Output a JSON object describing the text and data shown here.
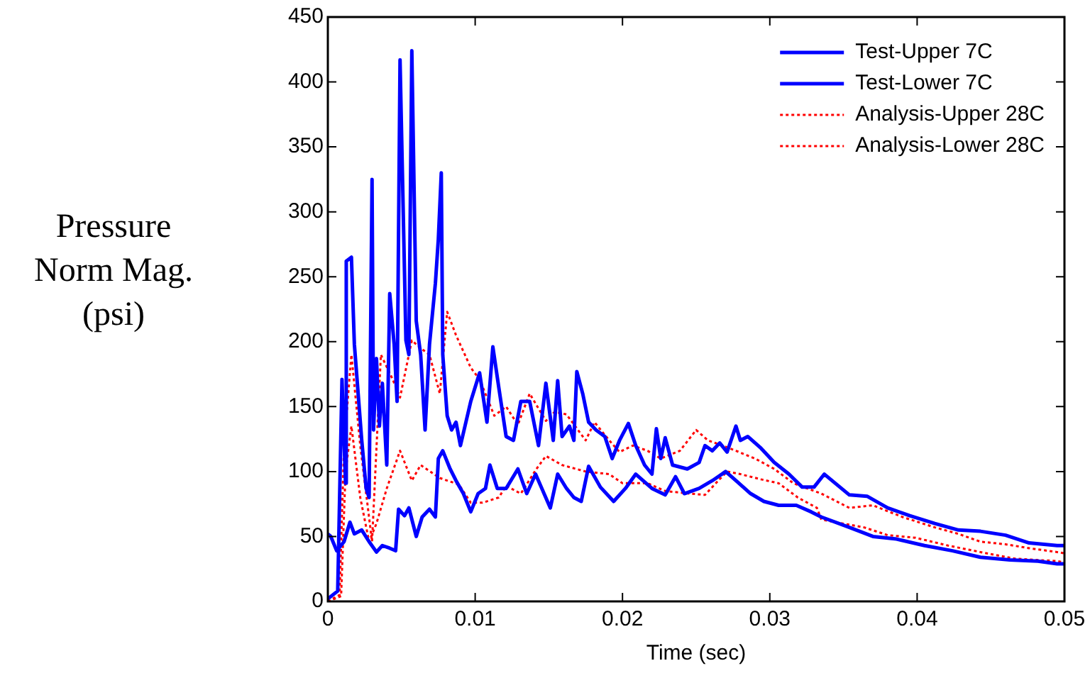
{
  "chart_data": {
    "type": "line",
    "xlabel": "Time (sec)",
    "ylabel": "Pressure Norm Mag. (psi)",
    "xlim": [
      0,
      0.05
    ],
    "xticks": [
      0,
      0.01,
      0.02,
      0.03,
      0.04,
      0.05
    ],
    "ylim": [
      0,
      450
    ],
    "yticks": [
      0,
      50,
      100,
      150,
      200,
      250,
      300,
      350,
      400,
      450
    ],
    "grid": false,
    "legend": "top right",
    "marker": "none",
    "series": [
      {
        "name": "Test-Upper 7C",
        "color": "#0000ff",
        "line_style": "solid",
        "x": [
          0,
          0.00067,
          0.00096,
          0.0012,
          0.00125,
          0.0016,
          0.0018,
          0.0023,
          0.0026,
          0.0028,
          0.003,
          0.0031,
          0.0033,
          0.0035,
          0.0037,
          0.004,
          0.0042,
          0.0045,
          0.0047,
          0.0049,
          0.0053,
          0.0055,
          0.0057,
          0.006,
          0.0063,
          0.0066,
          0.0069,
          0.0073,
          0.0075,
          0.0077,
          0.0078,
          0.0081,
          0.0084,
          0.0087,
          0.009,
          0.0097,
          0.0103,
          0.0108,
          0.0112,
          0.0116,
          0.0121,
          0.0126,
          0.0131,
          0.0137,
          0.0143,
          0.0148,
          0.0153,
          0.0156,
          0.0159,
          0.0164,
          0.0167,
          0.0169,
          0.0173,
          0.0177,
          0.0182,
          0.0188,
          0.0193,
          0.0198,
          0.0204,
          0.0209,
          0.0215,
          0.022,
          0.0223,
          0.0226,
          0.0229,
          0.0234,
          0.0244,
          0.0252,
          0.0256,
          0.0261,
          0.0266,
          0.0271,
          0.0277,
          0.028,
          0.0285,
          0.0294,
          0.0303,
          0.0313,
          0.0322,
          0.033,
          0.0337,
          0.0354,
          0.0366,
          0.038,
          0.0395,
          0.0412,
          0.0428,
          0.0443,
          0.046,
          0.0476,
          0.0495,
          0.05
        ],
        "values": [
          2,
          8,
          171,
          91,
          262,
          265,
          198,
          124,
          87,
          80,
          325,
          132,
          187,
          135,
          168,
          105,
          237,
          198,
          154,
          417,
          201,
          190,
          424,
          216,
          190,
          132,
          198,
          245,
          279,
          330,
          190,
          143,
          132,
          138,
          120,
          154,
          176,
          138,
          196,
          165,
          127,
          124,
          154,
          154,
          120,
          168,
          124,
          170,
          127,
          135,
          124,
          177,
          160,
          138,
          132,
          127,
          110,
          124,
          137,
          120,
          105,
          98,
          133,
          110,
          126,
          105,
          102,
          107,
          120,
          116,
          122,
          115,
          135,
          124,
          127,
          118,
          107,
          98,
          88,
          88,
          98,
          82,
          81,
          72,
          66,
          60,
          55,
          54,
          51,
          45,
          43,
          43
        ]
      },
      {
        "name": "Test-Lower 7C",
        "color": "#0000ff",
        "line_style": "solid",
        "x": [
          0,
          0.0002,
          0.0006,
          0.0011,
          0.0015,
          0.0018,
          0.0023,
          0.0028,
          0.0033,
          0.0037,
          0.0042,
          0.0046,
          0.0048,
          0.0052,
          0.0055,
          0.006,
          0.0064,
          0.0069,
          0.0073,
          0.0075,
          0.0078,
          0.0083,
          0.0087,
          0.0092,
          0.0097,
          0.0102,
          0.0107,
          0.011,
          0.0115,
          0.0121,
          0.0129,
          0.0135,
          0.0141,
          0.0151,
          0.0156,
          0.0162,
          0.0167,
          0.0172,
          0.0177,
          0.0185,
          0.0194,
          0.0202,
          0.0209,
          0.022,
          0.0229,
          0.0236,
          0.0242,
          0.0252,
          0.0261,
          0.027,
          0.0277,
          0.0287,
          0.0296,
          0.0306,
          0.0318,
          0.0328,
          0.0335,
          0.0354,
          0.037,
          0.0386,
          0.0405,
          0.0424,
          0.0443,
          0.0463,
          0.0482,
          0.0495,
          0.05
        ],
        "values": [
          52,
          50,
          39,
          46,
          61,
          52,
          55,
          46,
          38,
          43,
          41,
          39,
          71,
          66,
          72,
          50,
          65,
          71,
          65,
          110,
          116,
          102,
          93,
          83,
          69,
          83,
          87,
          105,
          87,
          87,
          102,
          83,
          98,
          72,
          98,
          87,
          80,
          77,
          104,
          88,
          77,
          87,
          98,
          87,
          82,
          96,
          83,
          87,
          93,
          100,
          93,
          83,
          77,
          74,
          74,
          69,
          65,
          57,
          50,
          48,
          43,
          39,
          34,
          32,
          31,
          29,
          29
        ]
      },
      {
        "name": "Analysis-Upper 28C",
        "color": "#ff0000",
        "line_style": "dotted",
        "x": [
          0,
          0.0008,
          0.0011,
          0.0016,
          0.0022,
          0.003,
          0.0036,
          0.0044,
          0.0049,
          0.0057,
          0.0063,
          0.0069,
          0.0076,
          0.0081,
          0.0087,
          0.0097,
          0.0103,
          0.0113,
          0.0121,
          0.0129,
          0.0137,
          0.0148,
          0.0154,
          0.0162,
          0.0175,
          0.0181,
          0.0191,
          0.0198,
          0.0207,
          0.0217,
          0.0226,
          0.0239,
          0.025,
          0.0258,
          0.0268,
          0.0277,
          0.029,
          0.0303,
          0.0316,
          0.0335,
          0.0354,
          0.037,
          0.039,
          0.0412,
          0.0428,
          0.0443,
          0.046,
          0.0476,
          0.0495,
          0.05
        ],
        "values": [
          0,
          5,
          120,
          190,
          120,
          46,
          190,
          171,
          157,
          201,
          195,
          190,
          160,
          223,
          205,
          180,
          171,
          143,
          150,
          136,
          160,
          139,
          146,
          144,
          124,
          138,
          124,
          115,
          120,
          116,
          110,
          116,
          132,
          124,
          120,
          116,
          110,
          102,
          91,
          83,
          72,
          74,
          65,
          57,
          52,
          46,
          44,
          41,
          38,
          37
        ]
      },
      {
        "name": "Analysis-Lower 28C",
        "color": "#ff0000",
        "line_style": "dotted",
        "x": [
          0,
          0.0009,
          0.0012,
          0.0016,
          0.0022,
          0.0028,
          0.0033,
          0.004,
          0.0049,
          0.0057,
          0.0063,
          0.0076,
          0.0089,
          0.0097,
          0.0105,
          0.0116,
          0.0121,
          0.0131,
          0.0141,
          0.0148,
          0.0159,
          0.0175,
          0.0191,
          0.02,
          0.0217,
          0.0229,
          0.0246,
          0.0256,
          0.0265,
          0.0271,
          0.028,
          0.0294,
          0.0306,
          0.0319,
          0.0332,
          0.0335,
          0.0364,
          0.038,
          0.0399,
          0.0421,
          0.0443,
          0.0466,
          0.0495,
          0.05
        ],
        "values": [
          0,
          4,
          100,
          135,
          80,
          46,
          60,
          87,
          116,
          93,
          105,
          95,
          90,
          76,
          76,
          80,
          89,
          83,
          101,
          112,
          105,
          100,
          98,
          91,
          91,
          85,
          83,
          82,
          93,
          100,
          98,
          94,
          91,
          80,
          72,
          63,
          57,
          51,
          49,
          43,
          38,
          33,
          31,
          30
        ]
      }
    ]
  }
}
